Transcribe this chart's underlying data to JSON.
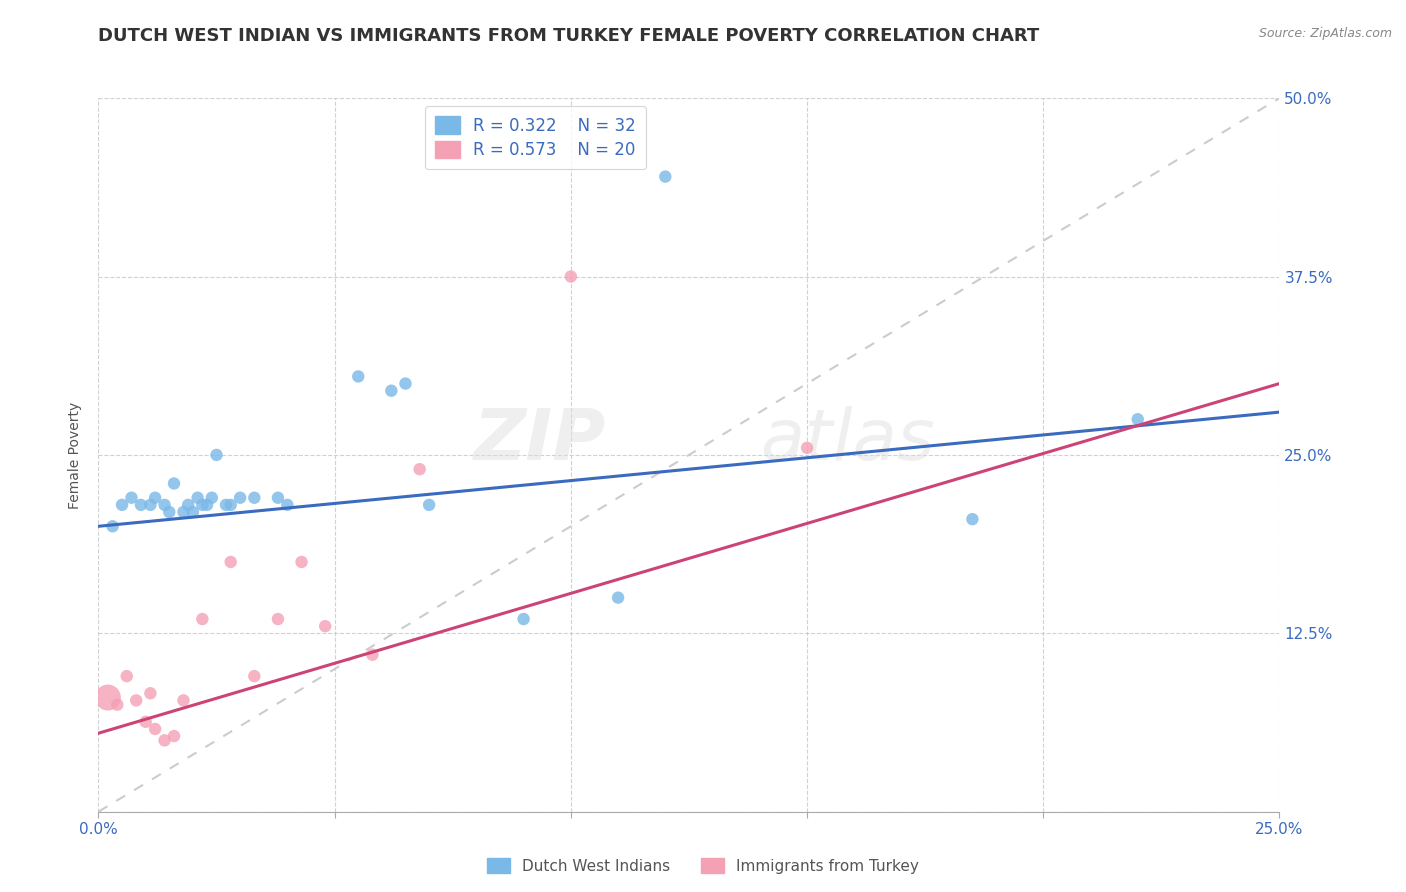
{
  "title": "DUTCH WEST INDIAN VS IMMIGRANTS FROM TURKEY FEMALE POVERTY CORRELATION CHART",
  "source": "Source: ZipAtlas.com",
  "ylabel": "Female Poverty",
  "xlim": [
    0.0,
    0.25
  ],
  "ylim": [
    0.0,
    0.5
  ],
  "xticks": [
    0.0,
    0.05,
    0.1,
    0.15,
    0.2,
    0.25
  ],
  "yticks": [
    0.0,
    0.125,
    0.25,
    0.375,
    0.5
  ],
  "xtick_labels": [
    "0.0%",
    "",
    "",
    "",
    "",
    "25.0%"
  ],
  "ytick_labels_right": [
    "",
    "12.5%",
    "25.0%",
    "37.5%",
    "50.0%"
  ],
  "background_color": "#ffffff",
  "grid_color": "#cccccc",
  "blue_color": "#7ab8e8",
  "pink_color": "#f4a0b5",
  "blue_line_color": "#3a6bbf",
  "pink_line_color": "#cc4477",
  "diag_line_color": "#cccccc",
  "blue_scatter_x": [
    0.003,
    0.005,
    0.007,
    0.009,
    0.011,
    0.012,
    0.014,
    0.015,
    0.016,
    0.018,
    0.019,
    0.02,
    0.021,
    0.022,
    0.023,
    0.024,
    0.025,
    0.027,
    0.028,
    0.03,
    0.033,
    0.038,
    0.04,
    0.055,
    0.062,
    0.065,
    0.07,
    0.09,
    0.11,
    0.12,
    0.185,
    0.22
  ],
  "blue_scatter_y": [
    0.2,
    0.215,
    0.22,
    0.215,
    0.215,
    0.22,
    0.215,
    0.21,
    0.23,
    0.21,
    0.215,
    0.21,
    0.22,
    0.215,
    0.215,
    0.22,
    0.25,
    0.215,
    0.215,
    0.22,
    0.22,
    0.22,
    0.215,
    0.305,
    0.295,
    0.3,
    0.215,
    0.135,
    0.15,
    0.445,
    0.205,
    0.275
  ],
  "blue_scatter_sizes": [
    80,
    80,
    80,
    80,
    80,
    80,
    80,
    80,
    80,
    80,
    80,
    80,
    80,
    80,
    80,
    80,
    80,
    80,
    80,
    80,
    80,
    80,
    80,
    80,
    80,
    80,
    80,
    80,
    80,
    80,
    80,
    80
  ],
  "pink_scatter_x": [
    0.002,
    0.004,
    0.006,
    0.008,
    0.01,
    0.011,
    0.012,
    0.014,
    0.016,
    0.018,
    0.022,
    0.028,
    0.033,
    0.038,
    0.043,
    0.048,
    0.058,
    0.068,
    0.1,
    0.15
  ],
  "pink_scatter_y": [
    0.08,
    0.075,
    0.095,
    0.078,
    0.063,
    0.083,
    0.058,
    0.05,
    0.053,
    0.078,
    0.135,
    0.175,
    0.095,
    0.135,
    0.175,
    0.13,
    0.11,
    0.24,
    0.375,
    0.255
  ],
  "pink_scatter_sizes": [
    350,
    80,
    80,
    80,
    80,
    80,
    80,
    80,
    80,
    80,
    80,
    80,
    80,
    80,
    80,
    80,
    80,
    80,
    80,
    80
  ],
  "blue_trendline_x": [
    0.0,
    0.25
  ],
  "blue_trendline_y": [
    0.2,
    0.28
  ],
  "pink_trendline_x": [
    0.0,
    0.25
  ],
  "pink_trendline_y": [
    0.055,
    0.3
  ],
  "watermark_line1": "ZIP",
  "watermark_line2": "atlas",
  "title_fontsize": 13,
  "axis_label_fontsize": 10,
  "tick_fontsize": 11,
  "legend_fontsize": 12
}
